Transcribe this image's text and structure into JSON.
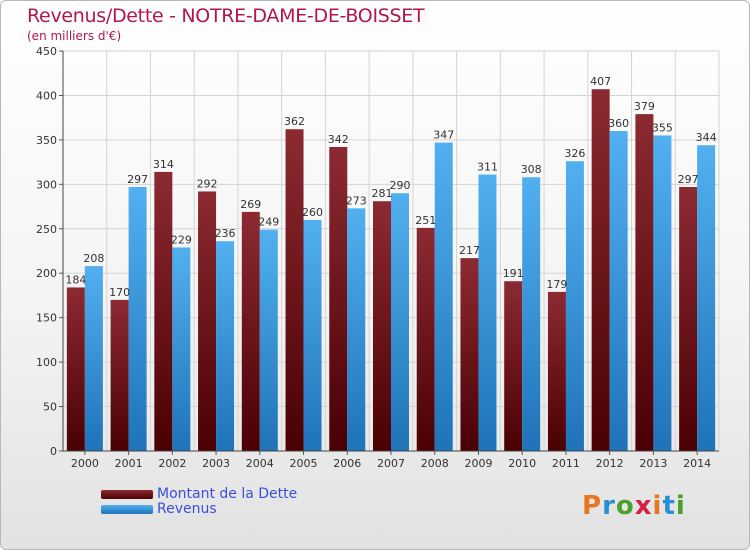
{
  "colors": {
    "dette": "#7a1a20",
    "revenus": "#3d9fe4",
    "title": "#b0174a",
    "legend_text": "#3a4fd8"
  },
  "logo": {
    "text": "Proxiti",
    "letter_colors": [
      "#e8761f",
      "#2a8fd2",
      "#4aa02a",
      "#d61f43",
      "#e8761f",
      "#2a8fd2",
      "#4aa02a"
    ]
  },
  "chart_data": {
    "type": "bar",
    "title": "Revenus/Dette - NOTRE-DAME-DE-BOISSET",
    "subtitle": "(en milliers d'€)",
    "xlabel": "",
    "ylabel": "",
    "ylim": [
      0,
      450
    ],
    "yticks": [
      0,
      50,
      100,
      150,
      200,
      250,
      300,
      350,
      400,
      450
    ],
    "grid": true,
    "legend_position": "bottom-left",
    "categories": [
      "2000",
      "2001",
      "2002",
      "2003",
      "2004",
      "2005",
      "2006",
      "2007",
      "2008",
      "2009",
      "2010",
      "2011",
      "2012",
      "2013",
      "2014"
    ],
    "series": [
      {
        "name": "Montant de la Dette",
        "color_key": "dette",
        "values": [
          184,
          170,
          314,
          292,
          269,
          362,
          342,
          281,
          251,
          217,
          191,
          179,
          407,
          379,
          297
        ]
      },
      {
        "name": "Revenus",
        "color_key": "revenus",
        "values": [
          208,
          297,
          229,
          236,
          249,
          260,
          273,
          290,
          347,
          311,
          308,
          326,
          360,
          355,
          344
        ]
      }
    ]
  }
}
